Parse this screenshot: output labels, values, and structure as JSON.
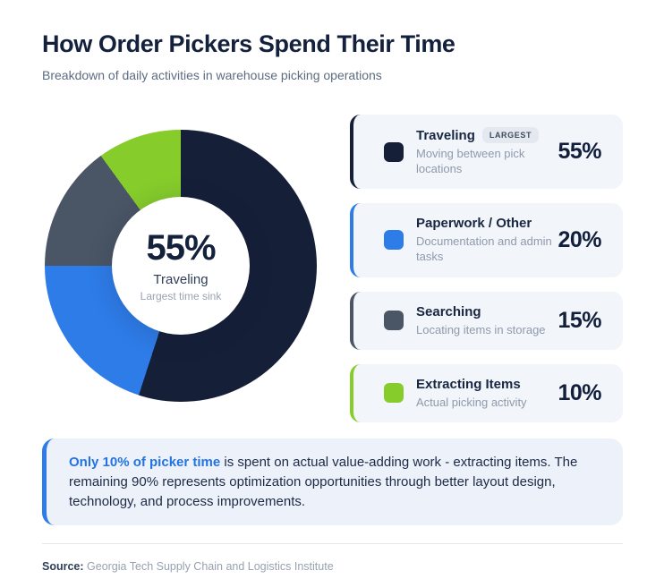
{
  "header": {
    "title": "How Order Pickers Spend Their Time",
    "subtitle": "Breakdown of daily activities in warehouse picking operations"
  },
  "chart_data": {
    "type": "pie",
    "variant": "donut",
    "title": "How Order Pickers Spend Their Time",
    "start_angle_deg": 0,
    "direction": "clockwise",
    "segments": [
      {
        "label": "Traveling",
        "description": "Moving between pick locations",
        "value": 55,
        "display": "55%",
        "color": "#161F38",
        "badge": "LARGEST"
      },
      {
        "label": "Paperwork / Other",
        "description": "Documentation and admin tasks",
        "value": 20,
        "display": "20%",
        "color": "#2E7CE8"
      },
      {
        "label": "Searching",
        "description": "Locating items in storage",
        "value": 15,
        "display": "15%",
        "color": "#4A5565"
      },
      {
        "label": "Extracting Items",
        "description": "Actual picking activity",
        "value": 10,
        "display": "10%",
        "color": "#86CC2B"
      }
    ],
    "center": {
      "value": "55%",
      "label": "Traveling",
      "sublabel": "Largest time sink"
    }
  },
  "callout": {
    "highlight": "Only 10% of picker time",
    "text": " is spent on actual value-adding work - extracting items. The remaining 90% represents optimization opportunities through better layout design, technology, and process improvements."
  },
  "footer": {
    "source_label": "Source:",
    "source_text": " Georgia Tech Supply Chain and Logistics Institute"
  }
}
